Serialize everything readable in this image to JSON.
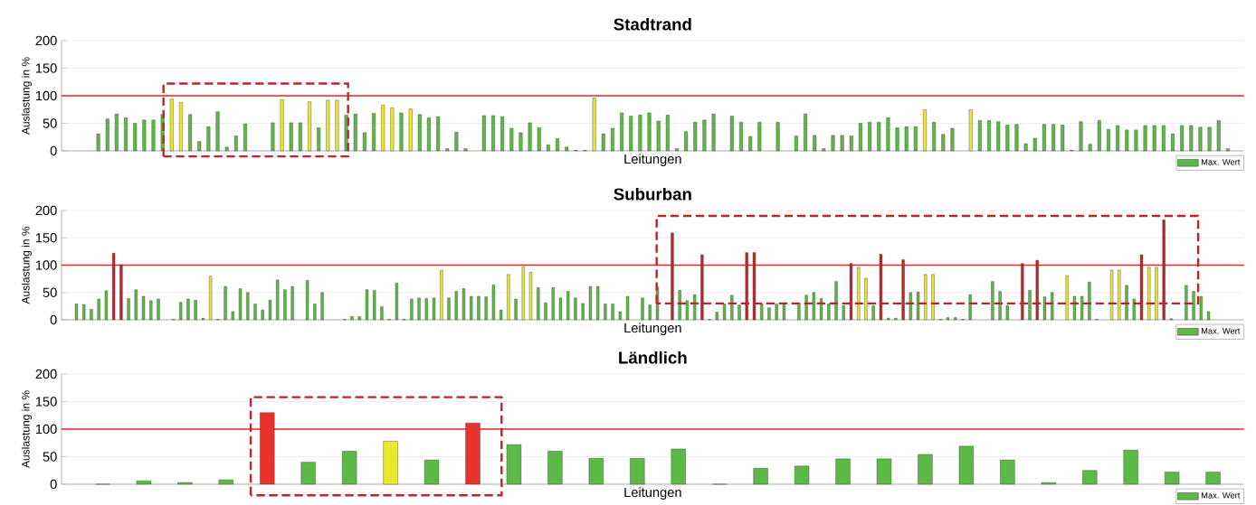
{
  "chart_data": [
    {
      "type": "bar",
      "title": "Stadtrand",
      "xlabel": "Leitungen",
      "ylabel": "Auslastung in %",
      "ylim": [
        0,
        200
      ],
      "yticks": [
        0,
        50,
        100,
        150,
        200
      ],
      "grid": "y",
      "legend": "bottom right",
      "tick_labels": "y",
      "categories": [
        null,
        null,
        null,
        null,
        null,
        null,
        null,
        null,
        null,
        null,
        null,
        null,
        null,
        null,
        null,
        null,
        null,
        null,
        null,
        null,
        null,
        null,
        null,
        null,
        null,
        null,
        null,
        null,
        null,
        null,
        null,
        null,
        null,
        null,
        null,
        null,
        null,
        null,
        null,
        null,
        null,
        null,
        null,
        null,
        null,
        null,
        null,
        null,
        null,
        null,
        null,
        null,
        null,
        null,
        null,
        null,
        null,
        null,
        null,
        null,
        null,
        null,
        null,
        null,
        null,
        null,
        null,
        null,
        null,
        null,
        null,
        null,
        null,
        null,
        null,
        null,
        null,
        null,
        null,
        null,
        null,
        null,
        null,
        null,
        null,
        null,
        null,
        null,
        null,
        null,
        null,
        null,
        null,
        null,
        null,
        null,
        null,
        null,
        null,
        null,
        null,
        null,
        null,
        null,
        null,
        null,
        null,
        null,
        null,
        null,
        null,
        null,
        null,
        null,
        null,
        null,
        null,
        null,
        null,
        null,
        null,
        null,
        null,
        null,
        null,
        null,
        null,
        null
      ],
      "series": [
        {
          "name": "Max. Wert",
          "color": "#5cb946",
          "values": [
            null,
            null,
            null,
            31,
            58,
            67,
            60,
            50,
            56,
            56,
            66,
            94,
            88,
            66,
            17,
            44,
            71,
            7,
            27,
            49,
            null,
            null,
            51,
            93,
            51,
            51,
            89,
            42,
            92,
            92,
            65,
            67,
            33,
            68,
            83,
            78,
            69,
            76,
            66,
            60,
            62,
            4,
            34,
            4,
            null,
            64,
            64,
            62,
            41,
            33,
            51,
            42,
            11,
            22,
            7,
            1,
            1,
            96,
            31,
            41,
            69,
            63,
            65,
            69,
            54,
            65,
            4,
            35,
            52,
            56,
            67,
            null,
            63,
            52,
            26,
            52,
            null,
            52,
            null,
            27,
            67,
            28,
            4,
            28,
            28,
            27,
            50,
            52,
            52,
            60,
            42,
            44,
            44,
            75,
            52,
            30,
            41,
            null,
            75,
            55,
            55,
            53,
            47,
            48,
            13,
            23,
            48,
            48,
            47,
            1,
            53,
            12,
            55,
            39,
            46,
            38,
            38,
            46,
            46,
            46,
            31,
            46,
            46,
            43,
            43,
            55,
            4,
            null
          ],
          "colors": [
            null,
            null,
            null,
            "#5cb946",
            "#5cb946",
            "#5cb946",
            "#5cb946",
            "#5cb946",
            "#5cb946",
            "#5cb946",
            "#5cb946",
            "#ede62e",
            "#ede62e",
            "#5cb946",
            "#5cb946",
            "#5cb946",
            "#5cb946",
            "#5cb946",
            "#5cb946",
            "#5cb946",
            null,
            null,
            "#5cb946",
            "#ede62e",
            "#5cb946",
            "#5cb946",
            "#ede62e",
            "#5cb946",
            "#ede62e",
            "#ede62e",
            "#5cb946",
            "#5cb946",
            "#5cb946",
            "#5cb946",
            "#ede62e",
            "#ede62e",
            "#5cb946",
            "#ede62e",
            "#5cb946",
            "#5cb946",
            "#5cb946",
            "#5cb946",
            "#5cb946",
            "#5cb946",
            null,
            "#5cb946",
            "#5cb946",
            "#5cb946",
            "#5cb946",
            "#5cb946",
            "#5cb946",
            "#5cb946",
            "#5cb946",
            "#5cb946",
            "#5cb946",
            "#5cb946",
            "#5cb946",
            "#ede62e",
            "#5cb946",
            "#5cb946",
            "#5cb946",
            "#5cb946",
            "#5cb946",
            "#5cb946",
            "#5cb946",
            "#5cb946",
            "#5cb946",
            "#5cb946",
            "#5cb946",
            "#5cb946",
            "#5cb946",
            null,
            "#5cb946",
            "#5cb946",
            "#5cb946",
            "#5cb946",
            null,
            "#5cb946",
            null,
            "#5cb946",
            "#5cb946",
            "#5cb946",
            "#5cb946",
            "#5cb946",
            "#5cb946",
            "#5cb946",
            "#5cb946",
            "#5cb946",
            "#5cb946",
            "#5cb946",
            "#5cb946",
            "#5cb946",
            "#5cb946",
            "#ede62e",
            "#5cb946",
            "#5cb946",
            "#5cb946",
            null,
            "#ede62e",
            "#5cb946",
            "#5cb946",
            "#5cb946",
            "#5cb946",
            "#5cb946",
            "#5cb946",
            "#5cb946",
            "#5cb946",
            "#5cb946",
            "#5cb946",
            "#5cb946",
            "#5cb946",
            "#5cb946",
            "#5cb946",
            "#5cb946",
            "#5cb946",
            "#5cb946",
            "#5cb946",
            "#5cb946",
            "#5cb946",
            "#5cb946",
            "#5cb946",
            "#5cb946",
            "#5cb946",
            "#5cb946",
            "#5cb946",
            "#5cb946",
            "#5cb946",
            null
          ]
        }
      ],
      "ref_lines": [
        {
          "axis": "y",
          "value": 100,
          "color": "#e8262b"
        }
      ]
    },
    {
      "type": "bar",
      "title": "Suburban",
      "xlabel": "Leitungen",
      "ylabel": "Auslastung in %",
      "ylim": [
        0,
        200
      ],
      "yticks": [
        0,
        50,
        100,
        150,
        200
      ],
      "grid": "y",
      "legend": "bottom right",
      "tick_labels": "y",
      "categories": [
        null,
        null,
        null,
        null,
        null,
        null,
        null,
        null,
        null,
        null,
        null,
        null,
        null,
        null,
        null,
        null,
        null,
        null,
        null,
        null,
        null,
        null,
        null,
        null,
        null,
        null,
        null,
        null,
        null,
        null,
        null,
        null,
        null,
        null,
        null,
        null,
        null,
        null,
        null,
        null,
        null,
        null,
        null,
        null,
        null,
        null,
        null,
        null,
        null,
        null,
        null,
        null,
        null,
        null,
        null,
        null,
        null,
        null,
        null,
        null,
        null,
        null,
        null,
        null,
        null,
        null,
        null,
        null,
        null,
        null,
        null,
        null,
        null,
        null,
        null,
        null,
        null,
        null,
        null,
        null,
        null,
        null,
        null,
        null,
        null,
        null,
        null,
        null,
        null,
        null,
        null,
        null,
        null,
        null,
        null,
        null,
        null,
        null,
        null,
        null,
        null,
        null,
        null,
        null,
        null,
        null,
        null,
        null,
        null,
        null,
        null,
        null,
        null,
        null,
        null,
        null,
        null,
        null,
        null,
        null,
        null,
        null,
        null,
        null,
        null,
        null,
        null,
        null,
        null,
        null,
        null,
        null,
        null,
        null,
        null,
        null,
        null,
        null,
        null,
        null,
        null,
        null,
        null,
        null,
        null,
        null,
        null,
        null,
        null,
        null,
        null,
        null,
        null,
        null,
        null,
        null,
        null,
        null
      ],
      "series": [
        {
          "name": "Max. Wert",
          "color": "#5cb946",
          "values": [
            null,
            29,
            28,
            19,
            38,
            53,
            122,
            101,
            39,
            55,
            43,
            35,
            38,
            null,
            1,
            32,
            38,
            36,
            3,
            80,
            1,
            61,
            15,
            57,
            50,
            29,
            18,
            36,
            73,
            55,
            61,
            null,
            72,
            29,
            50,
            null,
            null,
            1,
            6,
            6,
            55,
            54,
            24,
            1,
            67,
            1,
            38,
            40,
            39,
            40,
            91,
            40,
            52,
            57,
            43,
            43,
            42,
            64,
            18,
            83,
            38,
            97,
            87,
            59,
            31,
            59,
            40,
            52,
            40,
            30,
            61,
            61,
            29,
            29,
            15,
            43,
            null,
            40,
            27,
            60,
            null,
            159,
            54,
            35,
            46,
            119,
            1,
            14,
            29,
            45,
            27,
            123,
            123,
            29,
            22,
            29,
            31,
            null,
            29,
            45,
            50,
            39,
            29,
            70,
            26,
            103,
            96,
            76,
            26,
            120,
            3,
            3,
            110,
            50,
            51,
            83,
            83,
            1,
            4,
            4,
            1,
            46,
            null,
            null,
            70,
            52,
            26,
            null,
            103,
            54,
            109,
            42,
            50,
            null,
            81,
            43,
            43,
            69,
            1,
            null,
            91,
            91,
            63,
            38,
            119,
            96,
            96,
            183,
            2,
            null,
            63,
            52,
            43,
            15,
            null,
            null,
            null,
            null
          ],
          "colors": [
            null,
            "#5cb946",
            "#5cb946",
            "#5cb946",
            "#5cb946",
            "#5cb946",
            "#b8262b",
            "#b8262b",
            "#5cb946",
            "#5cb946",
            "#5cb946",
            "#5cb946",
            "#5cb946",
            null,
            "#5cb946",
            "#5cb946",
            "#5cb946",
            "#5cb946",
            "#5cb946",
            "#ede62e",
            "#5cb946",
            "#5cb946",
            "#5cb946",
            "#5cb946",
            "#5cb946",
            "#5cb946",
            "#5cb946",
            "#5cb946",
            "#5cb946",
            "#5cb946",
            "#5cb946",
            null,
            "#5cb946",
            "#5cb946",
            "#5cb946",
            null,
            null,
            "#5cb946",
            "#5cb946",
            "#5cb946",
            "#5cb946",
            "#5cb946",
            "#5cb946",
            "#5cb946",
            "#5cb946",
            "#5cb946",
            "#5cb946",
            "#5cb946",
            "#5cb946",
            "#5cb946",
            "#ede62e",
            "#5cb946",
            "#5cb946",
            "#5cb946",
            "#5cb946",
            "#5cb946",
            "#5cb946",
            "#5cb946",
            "#5cb946",
            "#ede62e",
            "#5cb946",
            "#ede62e",
            "#ede62e",
            "#5cb946",
            "#5cb946",
            "#5cb946",
            "#5cb946",
            "#5cb946",
            "#5cb946",
            "#5cb946",
            "#5cb946",
            "#5cb946",
            "#5cb946",
            "#5cb946",
            "#5cb946",
            "#5cb946",
            null,
            "#5cb946",
            "#5cb946",
            "#5cb946",
            null,
            "#b8262b",
            "#5cb946",
            "#5cb946",
            "#5cb946",
            "#b8262b",
            "#5cb946",
            "#5cb946",
            "#5cb946",
            "#5cb946",
            "#5cb946",
            "#b8262b",
            "#b8262b",
            "#5cb946",
            "#5cb946",
            "#5cb946",
            "#5cb946",
            null,
            "#5cb946",
            "#5cb946",
            "#5cb946",
            "#5cb946",
            "#5cb946",
            "#5cb946",
            "#5cb946",
            "#b8262b",
            "#ede62e",
            "#ede62e",
            "#5cb946",
            "#b8262b",
            "#5cb946",
            "#5cb946",
            "#b8262b",
            "#5cb946",
            "#5cb946",
            "#ede62e",
            "#ede62e",
            "#5cb946",
            "#5cb946",
            "#5cb946",
            "#5cb946",
            "#5cb946",
            null,
            null,
            "#5cb946",
            "#5cb946",
            "#5cb946",
            null,
            "#b8262b",
            "#5cb946",
            "#b8262b",
            "#5cb946",
            "#5cb946",
            null,
            "#ede62e",
            "#5cb946",
            "#5cb946",
            "#5cb946",
            "#5cb946",
            null,
            "#ede62e",
            "#ede62e",
            "#5cb946",
            "#5cb946",
            "#b8262b",
            "#ede62e",
            "#ede62e",
            "#b8262b",
            "#5cb946",
            null,
            "#5cb946",
            "#5cb946",
            "#5cb946",
            "#5cb946",
            null,
            null,
            null,
            null
          ]
        }
      ],
      "ref_lines": [
        {
          "axis": "y",
          "value": 100,
          "color": "#e8262b"
        }
      ]
    },
    {
      "type": "bar",
      "title": "Ländlich",
      "xlabel": "Leitungen",
      "ylabel": "Auslastung in %",
      "ylim": [
        0,
        200
      ],
      "yticks": [
        0,
        50,
        100,
        150,
        200
      ],
      "grid": "y",
      "legend": "bottom right",
      "tick_labels": "y",
      "categories": [
        null,
        null,
        null,
        null,
        null,
        null,
        null,
        null,
        null,
        null,
        null,
        null,
        null,
        null,
        null,
        null,
        null,
        null,
        null,
        null,
        null,
        null,
        null,
        null,
        null,
        null,
        null,
        null
      ],
      "series": [
        {
          "name": "Max. Wert",
          "color": "#5cb946",
          "values": [
            0,
            6,
            3,
            8,
            130,
            40,
            60,
            78,
            44,
            111,
            72,
            60,
            47,
            47,
            64,
            0,
            29,
            33,
            46,
            46,
            54,
            69,
            44,
            3,
            25,
            62,
            22,
            22
          ],
          "colors": [
            "#5cb946",
            "#5cb946",
            "#5cb946",
            "#5cb946",
            "#e8322b",
            "#5cb946",
            "#5cb946",
            "#ede62e",
            "#5cb946",
            "#e8322b",
            "#5cb946",
            "#5cb946",
            "#5cb946",
            "#5cb946",
            "#5cb946",
            "#5cb946",
            "#5cb946",
            "#5cb946",
            "#5cb946",
            "#5cb946",
            "#5cb946",
            "#5cb946",
            "#5cb946",
            "#5cb946",
            "#5cb946",
            "#5cb946",
            "#5cb946",
            "#5cb946"
          ]
        }
      ],
      "ref_lines": [
        {
          "axis": "y",
          "value": 100,
          "color": "#e8262b"
        }
      ]
    }
  ]
}
